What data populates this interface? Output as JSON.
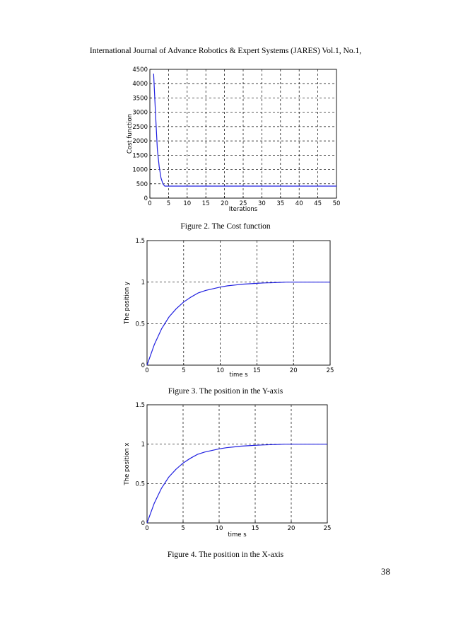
{
  "header": {
    "running_title": "International Journal of Advance Robotics & Expert Systems (JARES) Vol.1, No.1,"
  },
  "figures": [
    {
      "caption": "Figure 2.  The Cost function"
    },
    {
      "caption": "Figure 3.  The position in the Y-axis"
    },
    {
      "caption": "Figure 4.  The position in the X-axis"
    }
  ],
  "page_number": "38",
  "chart_data": [
    {
      "type": "line",
      "title": "",
      "xlabel": "Iterations",
      "ylabel": "Cost function",
      "xlim": [
        0,
        50
      ],
      "ylim": [
        0,
        4500
      ],
      "xticks": [
        0,
        5,
        10,
        15,
        20,
        25,
        30,
        35,
        40,
        45,
        50
      ],
      "yticks": [
        0,
        500,
        1000,
        1500,
        2000,
        2500,
        3000,
        3500,
        4000,
        4500
      ],
      "grid": true,
      "line_color": "#2020e0",
      "x": [
        1,
        1.5,
        2,
        2.5,
        3,
        3.5,
        4,
        5,
        10,
        20,
        30,
        40,
        50
      ],
      "y": [
        4350,
        3000,
        1700,
        1100,
        700,
        500,
        420,
        420,
        420,
        420,
        420,
        420,
        420
      ]
    },
    {
      "type": "line",
      "title": "",
      "xlabel": "time s",
      "ylabel": "The position y",
      "xlim": [
        0,
        25
      ],
      "ylim": [
        0,
        1.5
      ],
      "xticks": [
        0,
        5,
        10,
        15,
        20,
        25
      ],
      "yticks": [
        0,
        0.5,
        1,
        1.5
      ],
      "grid": true,
      "line_color": "#2020e0",
      "x": [
        0,
        1,
        2,
        3,
        4,
        5,
        6,
        7,
        8,
        9,
        10,
        11,
        12,
        13,
        14,
        15,
        16,
        17,
        18,
        19,
        20,
        21,
        22,
        23,
        24,
        25
      ],
      "y": [
        0,
        0.25,
        0.44,
        0.58,
        0.68,
        0.76,
        0.82,
        0.87,
        0.9,
        0.92,
        0.94,
        0.955,
        0.965,
        0.975,
        0.98,
        0.985,
        0.99,
        0.993,
        0.996,
        1,
        1,
        1,
        1,
        1,
        1,
        1
      ]
    },
    {
      "type": "line",
      "title": "",
      "xlabel": "time s",
      "ylabel": "The position x",
      "xlim": [
        0,
        25
      ],
      "ylim": [
        0,
        1.5
      ],
      "xticks": [
        0,
        5,
        10,
        15,
        20,
        25
      ],
      "yticks": [
        0,
        0.5,
        1,
        1.5
      ],
      "grid": true,
      "line_color": "#2020e0",
      "x": [
        0,
        1,
        2,
        3,
        4,
        5,
        6,
        7,
        8,
        9,
        10,
        11,
        12,
        13,
        14,
        15,
        16,
        17,
        18,
        19,
        20,
        21,
        22,
        23,
        24,
        25
      ],
      "y": [
        0,
        0.25,
        0.44,
        0.58,
        0.68,
        0.76,
        0.82,
        0.87,
        0.9,
        0.92,
        0.94,
        0.955,
        0.965,
        0.975,
        0.98,
        0.985,
        0.99,
        0.993,
        0.996,
        1,
        1,
        1,
        1,
        1,
        1,
        1
      ]
    }
  ]
}
